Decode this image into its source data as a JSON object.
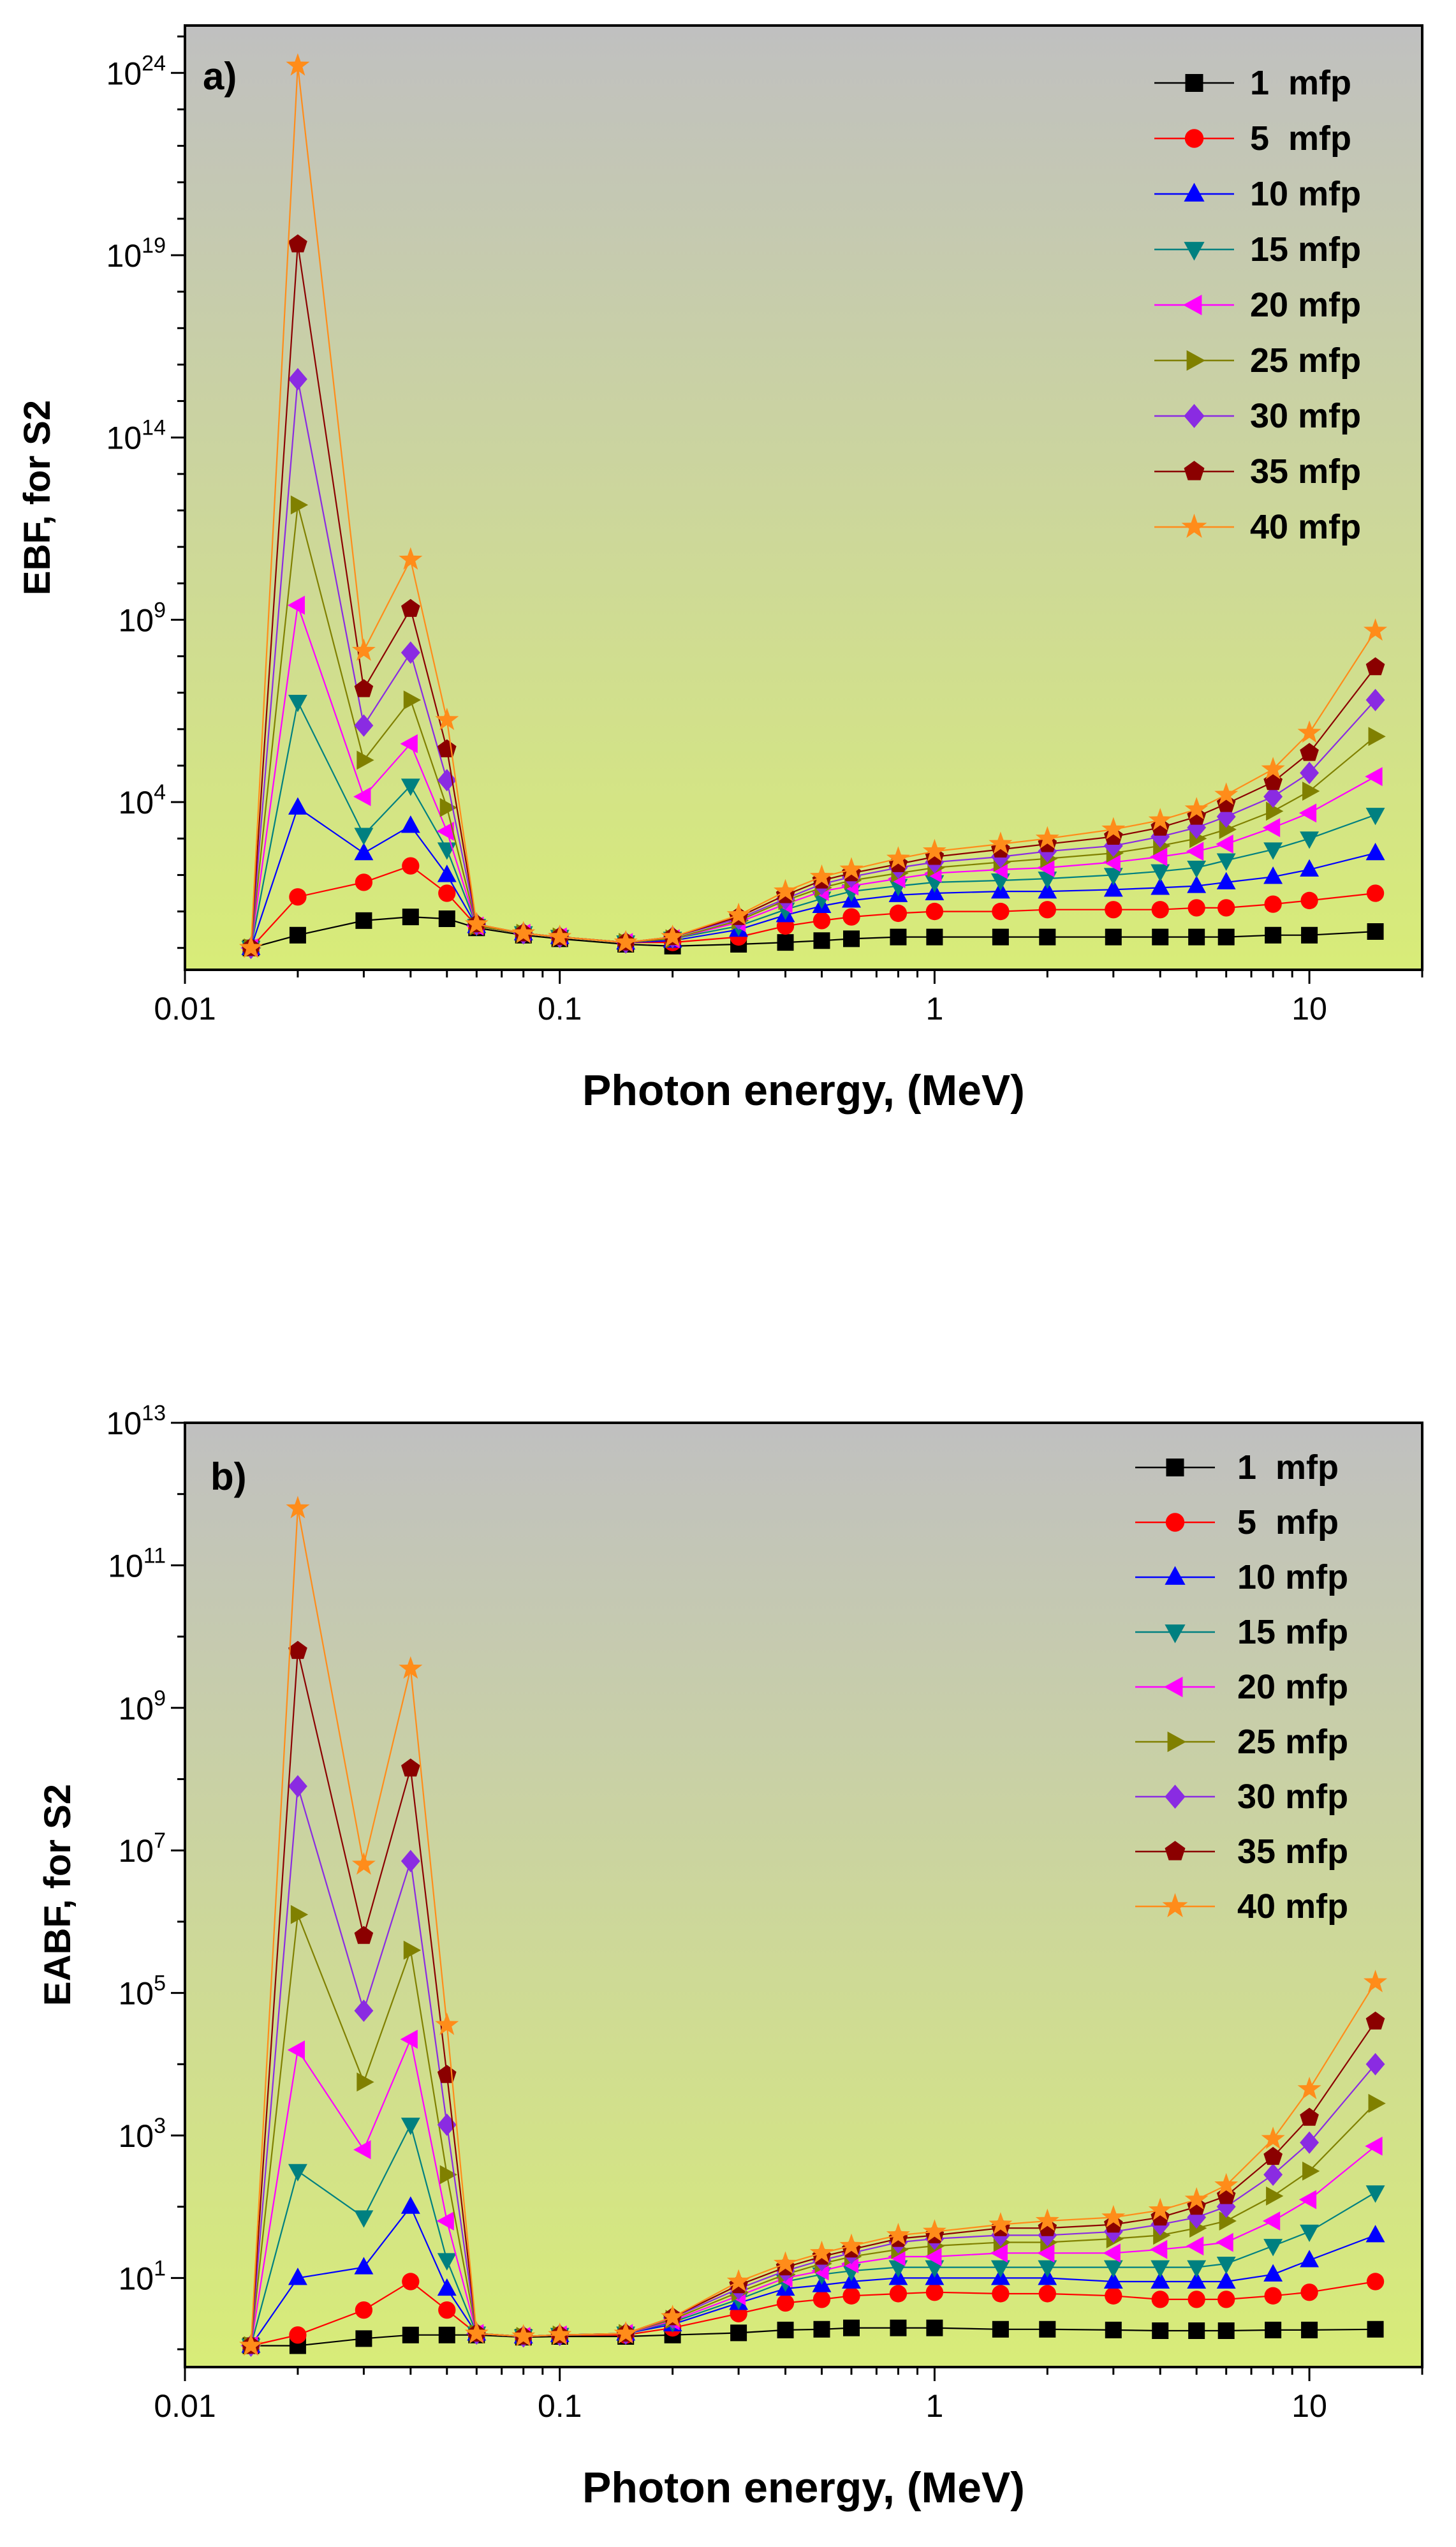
{
  "chart_data": [
    {
      "type": "line",
      "panel_label": "a)",
      "title": "",
      "xlabel": "Photon energy, (MeV)",
      "ylabel": "EBF, for S2",
      "xscale": "log",
      "yscale": "log",
      "xlim": [
        0.01,
        20
      ],
      "ylim_log10": [
        -0.6,
        25.3
      ],
      "xticks": [
        {
          "value": 0.01,
          "label": "0.01"
        },
        {
          "value": 0.1,
          "label": "0.1"
        },
        {
          "value": 1,
          "label": "1"
        },
        {
          "value": 10,
          "label": "10"
        }
      ],
      "yticks": [
        {
          "value": 4,
          "base": "10",
          "exp": "4"
        },
        {
          "value": 9,
          "base": "10",
          "exp": "9"
        },
        {
          "value": 14,
          "base": "10",
          "exp": "14"
        },
        {
          "value": 19,
          "base": "10",
          "exp": "19"
        },
        {
          "value": 24,
          "base": "10",
          "exp": "24"
        }
      ],
      "legend_position": "top-right",
      "background": {
        "top": "#c0c0c0",
        "bottom": "#d8ec78"
      },
      "x": [
        0.015,
        0.02,
        0.03,
        0.04,
        0.05,
        0.06,
        0.08,
        0.1,
        0.15,
        0.2,
        0.3,
        0.4,
        0.5,
        0.6,
        0.8,
        1,
        1.5,
        2,
        3,
        4,
        5,
        6,
        8,
        10,
        15
      ],
      "series": [
        {
          "name": "1  mfp",
          "marker": "square",
          "color": "#000000",
          "log10_values": [
            0,
            0.35,
            0.75,
            0.85,
            0.8,
            0.55,
            0.35,
            0.25,
            0.1,
            0.05,
            0.1,
            0.15,
            0.2,
            0.25,
            0.3,
            0.3,
            0.3,
            0.3,
            0.3,
            0.3,
            0.3,
            0.3,
            0.35,
            0.35,
            0.45
          ]
        },
        {
          "name": "5  mfp",
          "marker": "circle",
          "color": "#ff0000",
          "log10_values": [
            0,
            1.4,
            1.8,
            2.25,
            1.5,
            0.6,
            0.4,
            0.3,
            0.15,
            0.15,
            0.3,
            0.6,
            0.75,
            0.85,
            0.95,
            1.0,
            1.0,
            1.05,
            1.05,
            1.05,
            1.1,
            1.1,
            1.2,
            1.3,
            1.5
          ]
        },
        {
          "name": "10 mfp",
          "marker": "triangle-up",
          "color": "#0000ff",
          "log10_values": [
            0,
            3.85,
            2.6,
            3.35,
            2.0,
            0.6,
            0.4,
            0.3,
            0.15,
            0.2,
            0.5,
            0.9,
            1.15,
            1.3,
            1.45,
            1.5,
            1.55,
            1.55,
            1.6,
            1.65,
            1.7,
            1.8,
            1.95,
            2.15,
            2.6
          ]
        },
        {
          "name": "15 mfp",
          "marker": "triangle-down",
          "color": "#008080",
          "log10_values": [
            0,
            6.75,
            3.1,
            4.45,
            2.7,
            0.6,
            0.4,
            0.3,
            0.15,
            0.25,
            0.6,
            1.05,
            1.35,
            1.55,
            1.7,
            1.8,
            1.85,
            1.9,
            2.0,
            2.1,
            2.2,
            2.4,
            2.7,
            3.0,
            3.65
          ]
        },
        {
          "name": "20 mfp",
          "marker": "triangle-left",
          "color": "#ff00ff",
          "log10_values": [
            0,
            9.4,
            4.15,
            5.6,
            3.2,
            0.6,
            0.4,
            0.3,
            0.15,
            0.25,
            0.7,
            1.2,
            1.55,
            1.7,
            1.9,
            2.05,
            2.15,
            2.2,
            2.35,
            2.5,
            2.65,
            2.85,
            3.3,
            3.7,
            4.7
          ]
        },
        {
          "name": "25 mfp",
          "marker": "triangle-right",
          "color": "#808000",
          "log10_values": [
            0,
            12.15,
            5.15,
            6.8,
            3.85,
            0.6,
            0.4,
            0.3,
            0.15,
            0.25,
            0.75,
            1.3,
            1.65,
            1.85,
            2.05,
            2.2,
            2.35,
            2.45,
            2.6,
            2.8,
            3.0,
            3.25,
            3.75,
            4.3,
            5.8
          ]
        },
        {
          "name": "30 mfp",
          "marker": "diamond",
          "color": "#8a2be2",
          "log10_values": [
            0,
            15.6,
            6.1,
            8.1,
            4.6,
            0.65,
            0.4,
            0.3,
            0.15,
            0.3,
            0.8,
            1.35,
            1.75,
            1.95,
            2.2,
            2.35,
            2.5,
            2.65,
            2.8,
            3.05,
            3.3,
            3.6,
            4.15,
            4.8,
            6.8
          ]
        },
        {
          "name": "35 mfp",
          "marker": "pentagon",
          "color": "#8b0000",
          "log10_values": [
            0,
            19.3,
            7.1,
            9.3,
            5.45,
            0.65,
            0.4,
            0.3,
            0.15,
            0.3,
            0.85,
            1.45,
            1.85,
            2.05,
            2.3,
            2.5,
            2.7,
            2.85,
            3.05,
            3.3,
            3.6,
            3.95,
            4.55,
            5.35,
            7.7
          ]
        },
        {
          "name": "40 mfp",
          "marker": "star",
          "color": "#ff8c1a",
          "log10_values": [
            0,
            24.2,
            8.15,
            10.65,
            6.25,
            0.65,
            0.4,
            0.3,
            0.15,
            0.3,
            0.9,
            1.55,
            1.95,
            2.15,
            2.45,
            2.65,
            2.85,
            3.0,
            3.25,
            3.5,
            3.8,
            4.2,
            4.9,
            5.9,
            8.7
          ]
        }
      ]
    },
    {
      "type": "line",
      "panel_label": "b)",
      "title": "",
      "xlabel": "Photon energy, (MeV)",
      "ylabel": "EABF, for S2",
      "xscale": "log",
      "yscale": "log",
      "xlim": [
        0.01,
        20
      ],
      "ylim_log10": [
        -0.25,
        13
      ],
      "xticks": [
        {
          "value": 0.01,
          "label": "0.01"
        },
        {
          "value": 0.1,
          "label": "0.1"
        },
        {
          "value": 1,
          "label": "1"
        },
        {
          "value": 10,
          "label": "10"
        }
      ],
      "yticks": [
        {
          "value": 1,
          "base": "10",
          "exp": "1"
        },
        {
          "value": 3,
          "base": "10",
          "exp": "3"
        },
        {
          "value": 5,
          "base": "10",
          "exp": "5"
        },
        {
          "value": 7,
          "base": "10",
          "exp": "7"
        },
        {
          "value": 9,
          "base": "10",
          "exp": "9"
        },
        {
          "value": 11,
          "base": "10",
          "exp": "11"
        },
        {
          "value": 13,
          "base": "10",
          "exp": "13"
        }
      ],
      "legend_position": "top-right",
      "background": {
        "top": "#c0c0c0",
        "bottom": "#d8ec78"
      },
      "x": [
        0.015,
        0.02,
        0.03,
        0.04,
        0.05,
        0.06,
        0.08,
        0.1,
        0.15,
        0.2,
        0.3,
        0.4,
        0.5,
        0.6,
        0.8,
        1,
        1.5,
        2,
        3,
        4,
        5,
        6,
        8,
        10,
        15
      ],
      "series": [
        {
          "name": "1  mfp",
          "marker": "square",
          "color": "#000000",
          "log10_values": [
            0.05,
            0.05,
            0.15,
            0.2,
            0.2,
            0.2,
            0.17,
            0.18,
            0.18,
            0.2,
            0.23,
            0.27,
            0.28,
            0.3,
            0.3,
            0.3,
            0.28,
            0.28,
            0.27,
            0.26,
            0.26,
            0.26,
            0.27,
            0.27,
            0.28
          ]
        },
        {
          "name": "5  mfp",
          "marker": "circle",
          "color": "#ff0000",
          "log10_values": [
            0.05,
            0.2,
            0.55,
            0.95,
            0.55,
            0.22,
            0.18,
            0.2,
            0.2,
            0.3,
            0.5,
            0.65,
            0.7,
            0.75,
            0.78,
            0.8,
            0.78,
            0.78,
            0.75,
            0.7,
            0.7,
            0.7,
            0.75,
            0.8,
            0.95
          ]
        },
        {
          "name": "10 mfp",
          "marker": "triangle-up",
          "color": "#0000ff",
          "log10_values": [
            0.05,
            1.0,
            1.15,
            2.0,
            0.85,
            0.22,
            0.18,
            0.2,
            0.22,
            0.35,
            0.65,
            0.85,
            0.9,
            0.95,
            1.0,
            1.0,
            1.0,
            1.0,
            0.95,
            0.95,
            0.95,
            0.95,
            1.05,
            1.25,
            1.6
          ]
        },
        {
          "name": "15 mfp",
          "marker": "triangle-down",
          "color": "#008080",
          "log10_values": [
            0.05,
            2.5,
            1.85,
            3.15,
            1.25,
            0.22,
            0.18,
            0.2,
            0.22,
            0.38,
            0.7,
            0.95,
            1.05,
            1.1,
            1.15,
            1.15,
            1.15,
            1.15,
            1.15,
            1.15,
            1.15,
            1.2,
            1.45,
            1.65,
            2.2
          ]
        },
        {
          "name": "20 mfp",
          "marker": "triangle-left",
          "color": "#ff00ff",
          "log10_values": [
            0.05,
            4.2,
            2.8,
            4.35,
            1.8,
            0.22,
            0.18,
            0.2,
            0.22,
            0.4,
            0.75,
            1.0,
            1.1,
            1.2,
            1.3,
            1.3,
            1.35,
            1.35,
            1.35,
            1.4,
            1.45,
            1.5,
            1.8,
            2.1,
            2.85
          ]
        },
        {
          "name": "25 mfp",
          "marker": "triangle-right",
          "color": "#808000",
          "log10_values": [
            0.05,
            6.1,
            3.75,
            5.6,
            2.45,
            0.22,
            0.18,
            0.2,
            0.22,
            0.42,
            0.8,
            1.05,
            1.2,
            1.3,
            1.4,
            1.45,
            1.5,
            1.5,
            1.55,
            1.6,
            1.7,
            1.8,
            2.15,
            2.5,
            3.45
          ]
        },
        {
          "name": "30 mfp",
          "marker": "diamond",
          "color": "#8a2be2",
          "log10_values": [
            0.05,
            7.9,
            4.75,
            6.85,
            3.15,
            0.22,
            0.18,
            0.2,
            0.22,
            0.44,
            0.85,
            1.1,
            1.25,
            1.35,
            1.5,
            1.55,
            1.6,
            1.6,
            1.65,
            1.75,
            1.85,
            2.0,
            2.45,
            2.9,
            4.0
          ]
        },
        {
          "name": "35 mfp",
          "marker": "pentagon",
          "color": "#8b0000",
          "log10_values": [
            0.05,
            9.8,
            5.8,
            8.15,
            3.85,
            0.22,
            0.18,
            0.2,
            0.22,
            0.45,
            0.9,
            1.15,
            1.3,
            1.4,
            1.55,
            1.6,
            1.7,
            1.7,
            1.75,
            1.85,
            2.0,
            2.15,
            2.7,
            3.25,
            4.6
          ]
        },
        {
          "name": "40 mfp",
          "marker": "star",
          "color": "#ff8c1a",
          "log10_values": [
            0.05,
            11.8,
            6.8,
            9.55,
            4.55,
            0.22,
            0.18,
            0.2,
            0.22,
            0.45,
            0.95,
            1.2,
            1.35,
            1.45,
            1.6,
            1.65,
            1.75,
            1.8,
            1.85,
            1.95,
            2.1,
            2.3,
            2.95,
            3.65,
            5.15
          ]
        }
      ]
    }
  ]
}
